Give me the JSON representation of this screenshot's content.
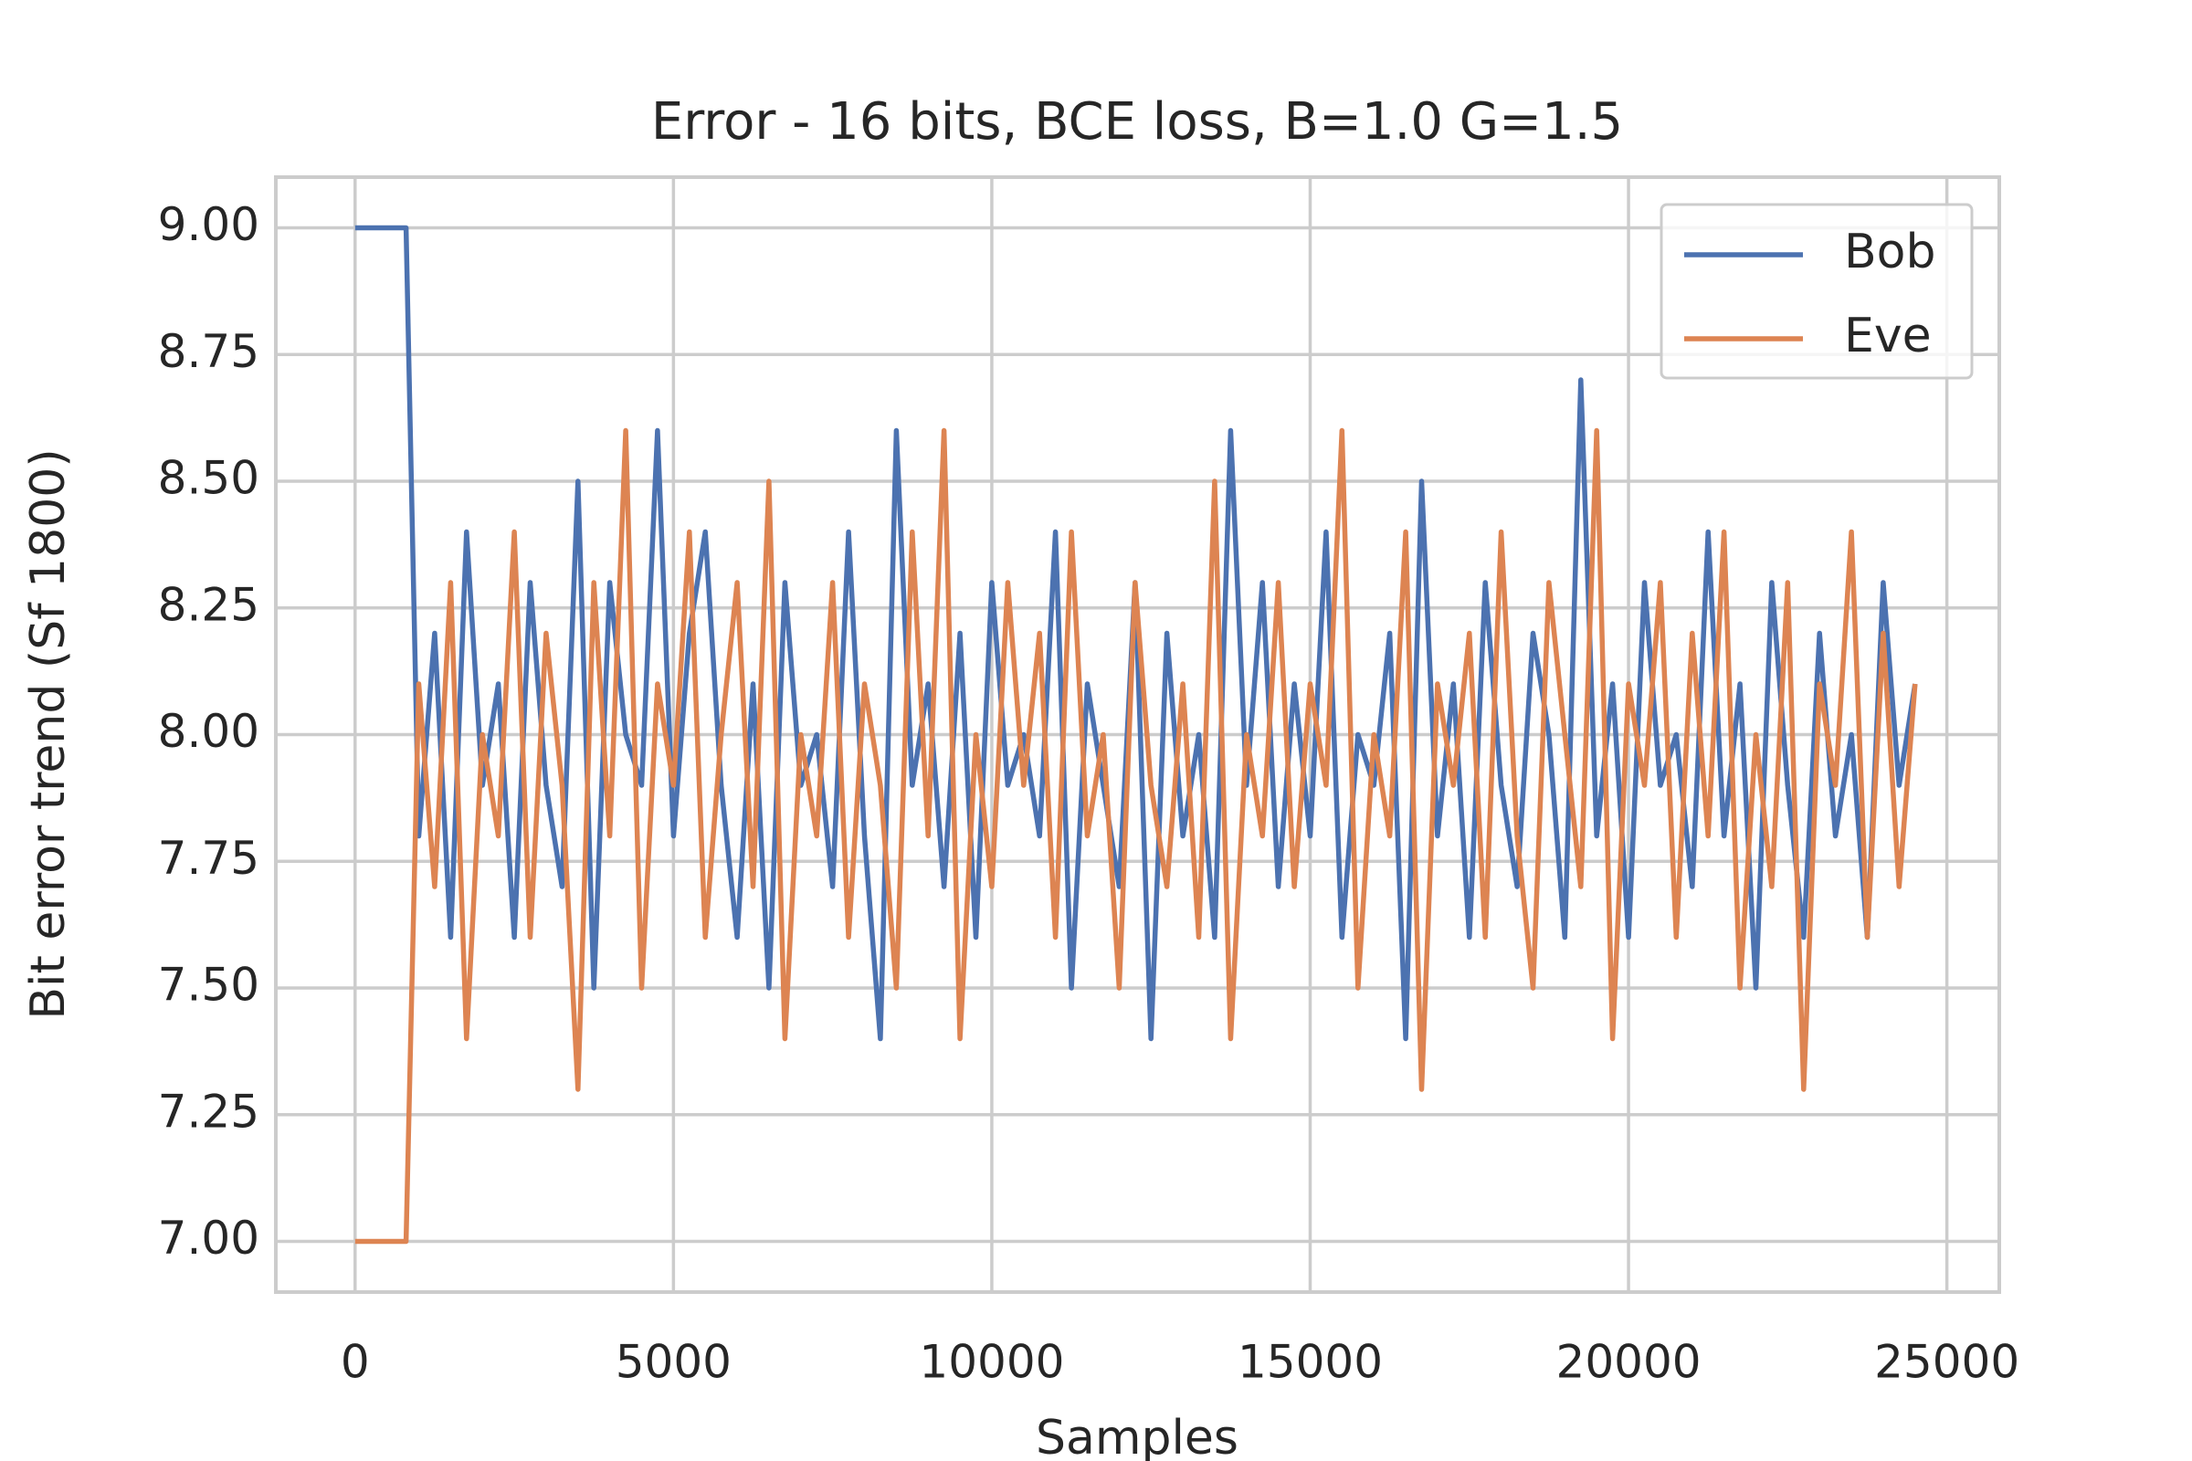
{
  "chart_data": {
    "type": "line",
    "title": "Error - 16 bits, BCE loss, B=1.0 G=1.5",
    "xlabel": "Samples",
    "ylabel": "Bit error trend (Sf 1800)",
    "x": [
      0,
      800,
      1000,
      1250,
      1500,
      1750,
      2000,
      2250,
      2500,
      2750,
      3000,
      3250,
      3500,
      3750,
      4000,
      4250,
      4500,
      4750,
      5000,
      5250,
      5500,
      5750,
      6000,
      6250,
      6500,
      6750,
      7000,
      7250,
      7500,
      7750,
      8000,
      8250,
      8500,
      8750,
      9000,
      9250,
      9500,
      9750,
      10000,
      10250,
      10500,
      10750,
      11000,
      11250,
      11500,
      11750,
      12000,
      12250,
      12500,
      12750,
      13000,
      13250,
      13500,
      13750,
      14000,
      14250,
      14500,
      14750,
      15000,
      15250,
      15500,
      15750,
      16000,
      16250,
      16500,
      16750,
      17000,
      17250,
      17500,
      17750,
      18000,
      18250,
      18500,
      18750,
      19000,
      19250,
      19500,
      19750,
      20000,
      20250,
      20500,
      20750,
      21000,
      21250,
      21500,
      21750,
      22000,
      22250,
      22500,
      22750,
      23000,
      23250,
      23500,
      23750,
      24000,
      24250,
      24500
    ],
    "series": [
      {
        "name": "Bob",
        "color": "#4c72b0",
        "values": [
          9,
          9,
          7.8,
          8.2,
          7.6,
          8.4,
          7.9,
          8.1,
          7.6,
          8.3,
          7.9,
          7.7,
          8.5,
          7.5,
          8.3,
          8.0,
          7.9,
          8.6,
          7.8,
          8.2,
          8.4,
          7.9,
          7.6,
          8.1,
          7.5,
          8.3,
          7.9,
          8.0,
          7.7,
          8.4,
          7.8,
          7.4,
          8.6,
          7.9,
          8.1,
          7.7,
          8.2,
          7.6,
          8.3,
          7.9,
          8.0,
          7.8,
          8.4,
          7.5,
          8.1,
          7.9,
          7.7,
          8.3,
          7.4,
          8.2,
          7.8,
          8.0,
          7.6,
          8.6,
          7.9,
          8.3,
          7.7,
          8.1,
          7.8,
          8.4,
          7.6,
          8.0,
          7.9,
          8.2,
          7.4,
          8.5,
          7.8,
          8.1,
          7.6,
          8.3,
          7.9,
          7.7,
          8.2,
          8.0,
          7.6,
          8.7,
          7.8,
          8.1,
          7.6,
          8.3,
          7.9,
          8.0,
          7.7,
          8.4,
          7.8,
          8.1,
          7.5,
          8.3,
          7.9,
          7.6,
          8.2,
          7.8,
          8.0,
          7.6,
          8.3,
          7.9,
          8.1
        ]
      },
      {
        "name": "Eve",
        "color": "#dd8452",
        "values": [
          7,
          7,
          8.1,
          7.7,
          8.3,
          7.4,
          8.0,
          7.8,
          8.4,
          7.6,
          8.2,
          7.9,
          7.3,
          8.3,
          7.8,
          8.6,
          7.5,
          8.1,
          7.9,
          8.4,
          7.6,
          8.0,
          8.3,
          7.7,
          8.5,
          7.4,
          8.0,
          7.8,
          8.3,
          7.6,
          8.1,
          7.9,
          7.5,
          8.4,
          7.8,
          8.6,
          7.4,
          8.0,
          7.7,
          8.3,
          7.9,
          8.2,
          7.6,
          8.4,
          7.8,
          8.0,
          7.5,
          8.3,
          7.9,
          7.7,
          8.1,
          7.6,
          8.5,
          7.4,
          8.0,
          7.8,
          8.3,
          7.7,
          8.1,
          7.9,
          8.6,
          7.5,
          8.0,
          7.8,
          8.4,
          7.3,
          8.1,
          7.9,
          8.2,
          7.6,
          8.4,
          7.8,
          7.5,
          8.3,
          8.0,
          7.7,
          8.6,
          7.4,
          8.1,
          7.9,
          8.3,
          7.6,
          8.2,
          7.8,
          8.4,
          7.5,
          8.0,
          7.7,
          8.3,
          7.3,
          8.1,
          7.9,
          8.4,
          7.6,
          8.2,
          7.7,
          8.1
        ]
      }
    ],
    "xlim": [
      -1245,
      25823
    ],
    "ylim": [
      6.9,
      9.1
    ],
    "xticks": [
      0,
      5000,
      10000,
      15000,
      20000,
      25000
    ],
    "yticks": [
      {
        "value": 7,
        "label": "7.00"
      },
      {
        "value": 7.25,
        "label": "7.25"
      },
      {
        "value": 7.5,
        "label": "7.50"
      },
      {
        "value": 7.75,
        "label": "7.75"
      },
      {
        "value": 8,
        "label": "8.00"
      },
      {
        "value": 8.25,
        "label": "8.25"
      },
      {
        "value": 8.5,
        "label": "8.50"
      },
      {
        "value": 8.75,
        "label": "8.75"
      },
      {
        "value": 9,
        "label": "9.00"
      }
    ],
    "grid": true,
    "legend": "upper right"
  }
}
